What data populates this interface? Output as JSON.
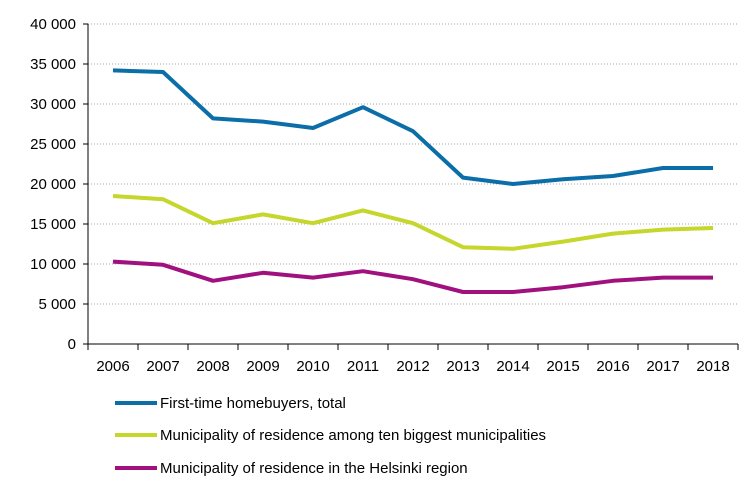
{
  "chart_data": {
    "type": "line",
    "title": "",
    "xlabel": "",
    "ylabel": "",
    "categories": [
      "2006",
      "2007",
      "2008",
      "2009",
      "2010",
      "2011",
      "2012",
      "2013",
      "2014",
      "2015",
      "2016",
      "2017",
      "2018"
    ],
    "ylim": [
      0,
      40000
    ],
    "yticks": [
      0,
      5000,
      10000,
      15000,
      20000,
      25000,
      30000,
      35000,
      40000
    ],
    "ytick_labels": [
      "0",
      "5 000",
      "10 000",
      "15 000",
      "20 000",
      "25 000",
      "30 000",
      "35 000",
      "40 000"
    ],
    "grid": "horizontal dotted",
    "legend_position": "bottom",
    "series": [
      {
        "name": "First-time homebuyers, total",
        "color": "#0b6ea8",
        "values": [
          34200,
          34000,
          28200,
          27800,
          27000,
          29600,
          26600,
          20800,
          20000,
          20600,
          21000,
          22000,
          22000
        ]
      },
      {
        "name": "Municipality of residence among ten biggest municipalities",
        "color": "#c5d62c",
        "values": [
          18500,
          18100,
          15100,
          16200,
          15100,
          16700,
          15100,
          12100,
          11900,
          12800,
          13800,
          14300,
          14500
        ]
      },
      {
        "name": "Municipality of residence in the Helsinki region",
        "color": "#a0117f",
        "values": [
          10300,
          9900,
          7900,
          8900,
          8300,
          9100,
          8100,
          6500,
          6500,
          7100,
          7900,
          8300,
          8300
        ]
      }
    ]
  }
}
